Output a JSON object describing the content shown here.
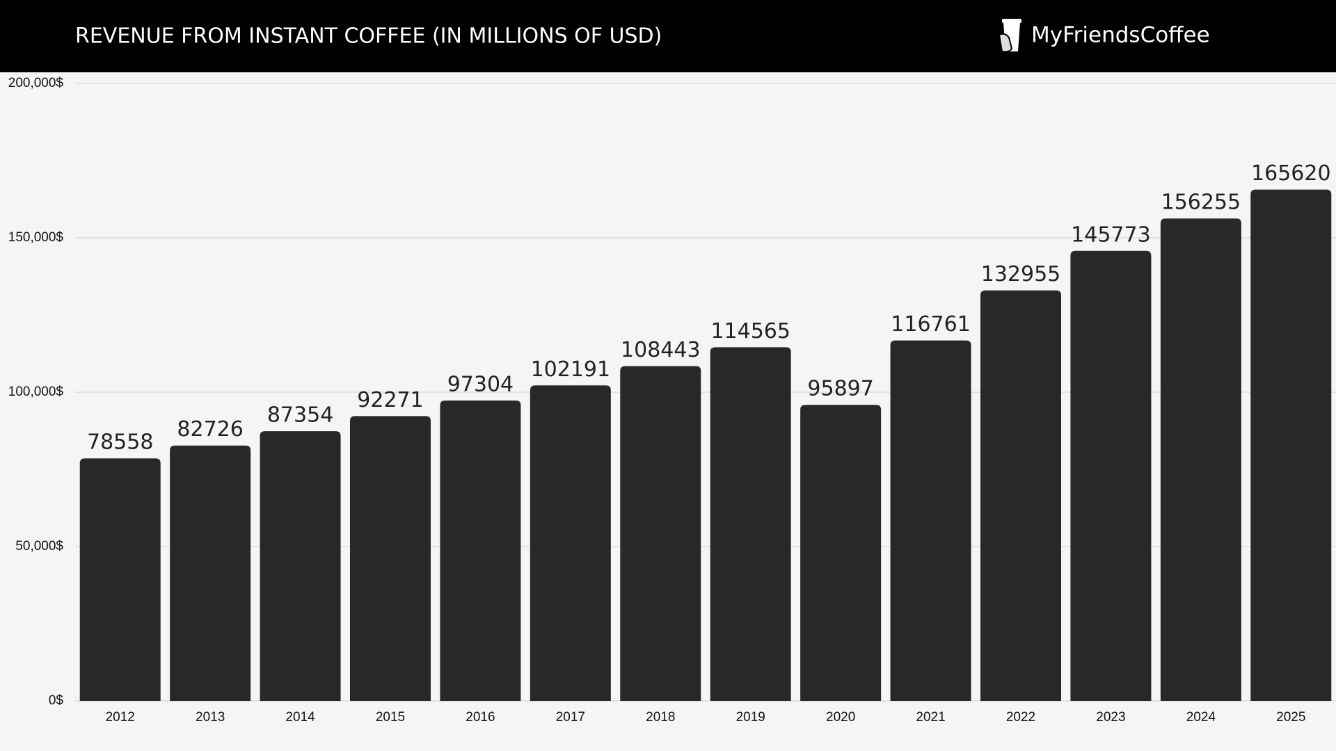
{
  "chart_data": {
    "type": "bar",
    "title": "REVENUE FROM INSTANT COFFEE (IN MILLIONS OF USD)",
    "categories": [
      "2012",
      "2013",
      "2014",
      "2015",
      "2016",
      "2017",
      "2018",
      "2019",
      "2020",
      "2021",
      "2022",
      "2023",
      "2024",
      "2025"
    ],
    "values": [
      78558,
      82726,
      87354,
      92271,
      97304,
      102191,
      108443,
      114565,
      95897,
      116761,
      132955,
      145773,
      156255,
      165620
    ],
    "color": "#282828",
    "ylim": [
      0,
      200000
    ],
    "yticks": [
      {
        "value": 0,
        "label": "0$"
      },
      {
        "value": 50000,
        "label": "50,000$"
      },
      {
        "value": 100000,
        "label": "100,000$"
      },
      {
        "value": 150000,
        "label": "150,000$"
      },
      {
        "value": 200000,
        "label": "200,000$"
      }
    ],
    "grid": true
  },
  "header": {
    "brand": "MyFriendsCoffee"
  }
}
